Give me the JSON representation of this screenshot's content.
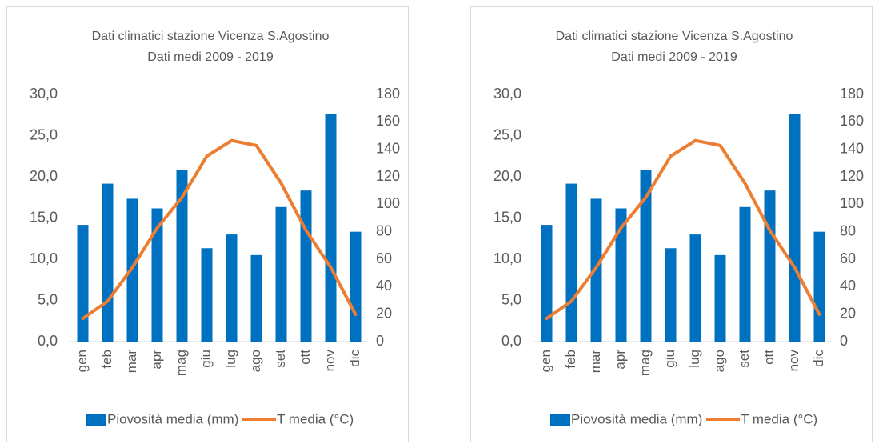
{
  "chart_data": [
    {
      "type": "combo",
      "title": "Dati climatici stazione Vicenza S.Agostino",
      "subtitle": "Dati medi 2009 - 2019",
      "categories": [
        "gen",
        "feb",
        "mar",
        "apr",
        "mag",
        "giu",
        "lug",
        "ago",
        "set",
        "ott",
        "nov",
        "dic"
      ],
      "series": [
        {
          "name": "Piovosità media (mm)",
          "color": "#0070c0",
          "type": "bar",
          "axis": "y2",
          "values": [
            85,
            115,
            104,
            97,
            125,
            68,
            78,
            63,
            98,
            110,
            166,
            80
          ]
        },
        {
          "name": "T media (°C)",
          "color": "#ed7d31",
          "type": "line",
          "values": [
            2.8,
            4.9,
            9.0,
            13.8,
            17.5,
            22.5,
            24.4,
            23.8,
            19.2,
            13.5,
            9.0,
            3.3
          ]
        }
      ],
      "ylim": [
        0,
        30
      ],
      "yticks": [
        {
          "value": 0,
          "label": "0,0"
        },
        {
          "value": 5,
          "label": "5,0"
        },
        {
          "value": 10,
          "label": "10,0"
        },
        {
          "value": 15,
          "label": "15,0"
        },
        {
          "value": 20,
          "label": "20,0"
        },
        {
          "value": 25,
          "label": "25,0"
        },
        {
          "value": 30,
          "label": "30,0"
        }
      ],
      "y2lim": [
        0,
        180
      ],
      "y2ticks": [
        0,
        20,
        40,
        60,
        80,
        100,
        120,
        140,
        160,
        180
      ],
      "legend": "bottom"
    },
    {
      "type": "combo",
      "title": "Dati climatici stazione Vicenza S.Agostino",
      "subtitle": "Dati medi 2009 - 2019",
      "categories": [
        "gen",
        "feb",
        "mar",
        "apr",
        "mag",
        "giu",
        "lug",
        "ago",
        "set",
        "ott",
        "nov",
        "dic"
      ],
      "series": [
        {
          "name": "Piovosità media (mm)",
          "color": "#0070c0",
          "type": "bar",
          "axis": "y2",
          "values": [
            85,
            115,
            104,
            97,
            125,
            68,
            78,
            63,
            98,
            110,
            166,
            80
          ]
        },
        {
          "name": "T media (°C)",
          "color": "#ed7d31",
          "type": "line",
          "values": [
            2.8,
            4.9,
            9.0,
            13.8,
            17.5,
            22.5,
            24.4,
            23.8,
            19.2,
            13.5,
            9.0,
            3.3
          ]
        }
      ],
      "ylim": [
        0,
        30
      ],
      "yticks": [
        {
          "value": 0,
          "label": "0,0"
        },
        {
          "value": 5,
          "label": "5,0"
        },
        {
          "value": 10,
          "label": "10,0"
        },
        {
          "value": 15,
          "label": "15,0"
        },
        {
          "value": 20,
          "label": "20,0"
        },
        {
          "value": 25,
          "label": "25,0"
        },
        {
          "value": 30,
          "label": "30,0"
        }
      ],
      "y2lim": [
        0,
        180
      ],
      "y2ticks": [
        0,
        20,
        40,
        60,
        80,
        100,
        120,
        140,
        160,
        180
      ],
      "legend": "bottom"
    }
  ]
}
